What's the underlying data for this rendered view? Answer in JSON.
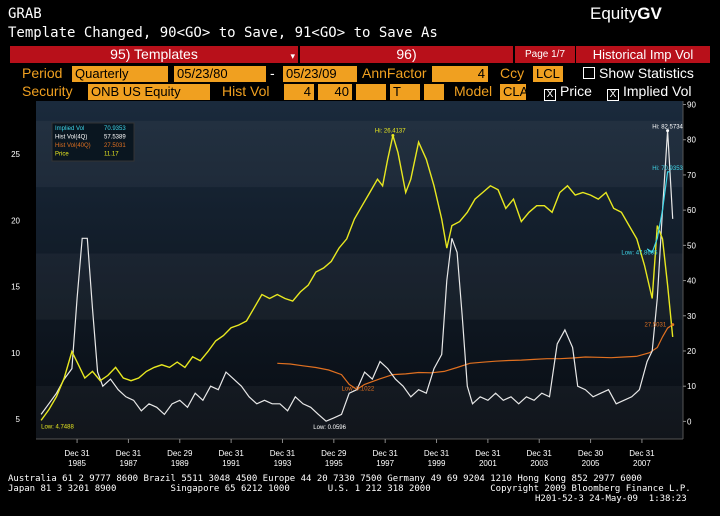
{
  "header": {
    "screen_name": "GRAB",
    "brand": "Equity",
    "brand_code": "GV",
    "message": "Template Changed, 90<GO> to Save, 91<GO> to Save As"
  },
  "bar": {
    "templates_label": "95) Templates",
    "templates_arrow": "▾",
    "slot96": "96)",
    "page": "Page 1/7",
    "view_title": "Historical Imp Vol"
  },
  "controls": {
    "period_label": "Period",
    "period_value": "Quarterly",
    "start_date": "05/23/80",
    "dash": "-",
    "end_date": "05/23/09",
    "annfactor_label": "AnnFactor",
    "annfactor_value": "4",
    "ccy_label": "Ccy",
    "ccy_value": "LCL",
    "show_stats_label": "Show Statistics",
    "security_label": "Security",
    "security_value": "ONB US Equity",
    "histvol_label": "Hist Vol",
    "histvol_1": "4",
    "histvol_2": "40",
    "histvol_3": "",
    "histvol_4": "T",
    "model_label": "Model",
    "model_value": "CLA",
    "price_label": "Price",
    "impvol_label": "Implied Vol",
    "check_mark": "X"
  },
  "legend": [
    {
      "label": "Implied Vol",
      "value": "70.9353",
      "color": "#3fd6e8"
    },
    {
      "label": "Hist Vol(4Q)",
      "value": "57.5389",
      "color": "#ffffff"
    },
    {
      "label": "Hist Vol(40Q)",
      "value": "27.5031",
      "color": "#e07020"
    },
    {
      "label": "Price",
      "value": "11.17",
      "color": "#e8e820"
    }
  ],
  "annotations": {
    "hi_price": "Hi: 26.4137",
    "hi_hist": "Hi: 82.5734",
    "hi_imp": "Hi: 70.9353",
    "low_price": "Low: 4.7488",
    "low_hist": "Low: 0.0596",
    "low_hist40": "Low: 9.1022",
    "low_imp": "Low: 47.8605",
    "last_hist40": "27.5031"
  },
  "chart_data": {
    "type": "line",
    "title": "",
    "x_tick_labels": [
      [
        "Dec 31",
        "1985"
      ],
      [
        "Dec 31",
        "1987"
      ],
      [
        "Dec 29",
        "1989"
      ],
      [
        "Dec 31",
        "1991"
      ],
      [
        "Dec 31",
        "1993"
      ],
      [
        "Dec 29",
        "1995"
      ],
      [
        "Dec 31",
        "1997"
      ],
      [
        "Dec 31",
        "1999"
      ],
      [
        "Dec 31",
        "2001"
      ],
      [
        "Dec 31",
        "2003"
      ],
      [
        "Dec 30",
        "2005"
      ],
      [
        "Dec 31",
        "2007"
      ]
    ],
    "x_tick_years": [
      1986,
      1988,
      1990,
      1992,
      1994,
      1996,
      1998,
      2000,
      2002,
      2004,
      2006,
      2008
    ],
    "xlim": [
      1984.4,
      2009.6
    ],
    "left_axis": {
      "ticks": [
        5,
        10,
        15,
        20,
        25
      ],
      "ylim": [
        3.5,
        29
      ]
    },
    "right_axis": {
      "ticks": [
        0,
        10,
        20,
        30,
        40,
        50,
        60,
        70,
        80,
        90
      ],
      "ylim": [
        -5,
        91
      ]
    },
    "series": [
      {
        "name": "Price",
        "axis": "left",
        "color": "#e8e820",
        "points": [
          [
            1984.6,
            4.9
          ],
          [
            1984.9,
            5.7
          ],
          [
            1985.2,
            6.7
          ],
          [
            1985.5,
            8.1
          ],
          [
            1985.8,
            10.1
          ],
          [
            1986.0,
            9.3
          ],
          [
            1986.3,
            8.1
          ],
          [
            1986.6,
            8.6
          ],
          [
            1986.9,
            7.9
          ],
          [
            1987.2,
            8.3
          ],
          [
            1987.5,
            8.9
          ],
          [
            1987.8,
            8.1
          ],
          [
            1988.1,
            7.9
          ],
          [
            1988.4,
            8.1
          ],
          [
            1988.7,
            8.6
          ],
          [
            1989.0,
            8.9
          ],
          [
            1989.3,
            9.1
          ],
          [
            1989.6,
            8.9
          ],
          [
            1989.9,
            9.3
          ],
          [
            1990.2,
            8.9
          ],
          [
            1990.5,
            9.7
          ],
          [
            1990.8,
            9.4
          ],
          [
            1991.1,
            10.1
          ],
          [
            1991.4,
            10.9
          ],
          [
            1991.7,
            11.3
          ],
          [
            1992.0,
            11.9
          ],
          [
            1992.3,
            12.1
          ],
          [
            1992.6,
            12.4
          ],
          [
            1992.9,
            13.4
          ],
          [
            1993.2,
            14.4
          ],
          [
            1993.5,
            14.1
          ],
          [
            1993.8,
            14.4
          ],
          [
            1994.1,
            14.1
          ],
          [
            1994.4,
            13.9
          ],
          [
            1994.7,
            14.6
          ],
          [
            1995.0,
            15.1
          ],
          [
            1995.3,
            16.1
          ],
          [
            1995.6,
            16.4
          ],
          [
            1995.9,
            16.9
          ],
          [
            1996.2,
            17.9
          ],
          [
            1996.5,
            18.6
          ],
          [
            1996.8,
            20.1
          ],
          [
            1997.1,
            21.1
          ],
          [
            1997.4,
            22.1
          ],
          [
            1997.7,
            23.1
          ],
          [
            1997.9,
            22.6
          ],
          [
            1998.1,
            24.6
          ],
          [
            1998.3,
            26.4
          ],
          [
            1998.5,
            25.1
          ],
          [
            1998.8,
            22.1
          ],
          [
            1999.0,
            23.1
          ],
          [
            1999.3,
            25.9
          ],
          [
            1999.6,
            24.6
          ],
          [
            1999.9,
            22.6
          ],
          [
            2000.2,
            20.1
          ],
          [
            2000.4,
            17.9
          ],
          [
            2000.6,
            19.6
          ],
          [
            2000.9,
            19.9
          ],
          [
            2001.2,
            20.6
          ],
          [
            2001.5,
            21.6
          ],
          [
            2001.8,
            22.1
          ],
          [
            2002.1,
            22.6
          ],
          [
            2002.4,
            22.3
          ],
          [
            2002.7,
            20.9
          ],
          [
            2003.0,
            21.6
          ],
          [
            2003.3,
            19.9
          ],
          [
            2003.6,
            20.6
          ],
          [
            2003.9,
            21.1
          ],
          [
            2004.2,
            21.1
          ],
          [
            2004.5,
            20.6
          ],
          [
            2004.8,
            22.1
          ],
          [
            2005.1,
            22.6
          ],
          [
            2005.4,
            21.9
          ],
          [
            2005.7,
            22.1
          ],
          [
            2006.0,
            21.9
          ],
          [
            2006.3,
            21.6
          ],
          [
            2006.6,
            22.1
          ],
          [
            2006.9,
            20.9
          ],
          [
            2007.2,
            20.6
          ],
          [
            2007.5,
            19.6
          ],
          [
            2007.8,
            18.6
          ],
          [
            2008.1,
            16.6
          ],
          [
            2008.4,
            14.1
          ],
          [
            2008.6,
            19.6
          ],
          [
            2008.8,
            18.6
          ],
          [
            2009.0,
            15.1
          ],
          [
            2009.2,
            11.2
          ]
        ]
      },
      {
        "name": "Hist Vol(4Q)",
        "axis": "right",
        "color": "#e8e8e8",
        "points": [
          [
            1984.6,
            2
          ],
          [
            1984.9,
            5
          ],
          [
            1985.2,
            8
          ],
          [
            1985.5,
            12
          ],
          [
            1985.8,
            15
          ],
          [
            1986.0,
            35
          ],
          [
            1986.2,
            52
          ],
          [
            1986.4,
            52
          ],
          [
            1986.6,
            32
          ],
          [
            1986.8,
            14
          ],
          [
            1987.0,
            10
          ],
          [
            1987.3,
            12
          ],
          [
            1987.6,
            9
          ],
          [
            1987.9,
            7
          ],
          [
            1988.2,
            6
          ],
          [
            1988.5,
            3
          ],
          [
            1988.8,
            5
          ],
          [
            1989.1,
            4
          ],
          [
            1989.4,
            2
          ],
          [
            1989.7,
            5
          ],
          [
            1990.0,
            6
          ],
          [
            1990.3,
            4
          ],
          [
            1990.6,
            8
          ],
          [
            1990.9,
            6
          ],
          [
            1991.2,
            10
          ],
          [
            1991.5,
            9
          ],
          [
            1991.8,
            14
          ],
          [
            1992.1,
            12
          ],
          [
            1992.4,
            10
          ],
          [
            1992.7,
            7
          ],
          [
            1993.0,
            5
          ],
          [
            1993.3,
            6
          ],
          [
            1993.6,
            5
          ],
          [
            1993.9,
            5
          ],
          [
            1994.2,
            3
          ],
          [
            1994.5,
            7
          ],
          [
            1994.8,
            5
          ],
          [
            1995.1,
            4
          ],
          [
            1995.4,
            2
          ],
          [
            1995.7,
            0.06
          ],
          [
            1996.0,
            1
          ],
          [
            1996.3,
            2
          ],
          [
            1996.6,
            8
          ],
          [
            1996.9,
            9
          ],
          [
            1997.2,
            14
          ],
          [
            1997.5,
            12
          ],
          [
            1997.8,
            17
          ],
          [
            1998.1,
            15
          ],
          [
            1998.4,
            12
          ],
          [
            1998.7,
            10
          ],
          [
            1999.0,
            7
          ],
          [
            1999.3,
            9
          ],
          [
            1999.6,
            8
          ],
          [
            1999.9,
            15
          ],
          [
            2000.2,
            19
          ],
          [
            2000.4,
            40
          ],
          [
            2000.6,
            52
          ],
          [
            2000.8,
            48
          ],
          [
            2001.0,
            30
          ],
          [
            2001.2,
            10
          ],
          [
            2001.4,
            5
          ],
          [
            2001.7,
            7
          ],
          [
            2002.0,
            6
          ],
          [
            2002.3,
            8
          ],
          [
            2002.6,
            6
          ],
          [
            2002.9,
            7
          ],
          [
            2003.2,
            5
          ],
          [
            2003.5,
            7
          ],
          [
            2003.8,
            6
          ],
          [
            2004.1,
            8
          ],
          [
            2004.4,
            7
          ],
          [
            2004.7,
            22
          ],
          [
            2005.0,
            26
          ],
          [
            2005.3,
            21
          ],
          [
            2005.5,
            10
          ],
          [
            2005.8,
            9
          ],
          [
            2006.1,
            7
          ],
          [
            2006.4,
            8
          ],
          [
            2006.7,
            9
          ],
          [
            2007.0,
            5
          ],
          [
            2007.3,
            6
          ],
          [
            2007.6,
            7
          ],
          [
            2007.9,
            9
          ],
          [
            2008.2,
            17
          ],
          [
            2008.4,
            20
          ],
          [
            2008.6,
            35
          ],
          [
            2008.8,
            60
          ],
          [
            2009.0,
            82.6
          ],
          [
            2009.2,
            57.5
          ]
        ]
      },
      {
        "name": "Hist Vol(40Q)",
        "axis": "right",
        "color": "#e07020",
        "points": [
          [
            1993.8,
            16.5
          ],
          [
            1994.3,
            16.3
          ],
          [
            1994.8,
            15.8
          ],
          [
            1995.3,
            15.3
          ],
          [
            1995.8,
            14.6
          ],
          [
            1996.3,
            13.3
          ],
          [
            1996.6,
            10.5
          ],
          [
            1996.9,
            9.1
          ],
          [
            1997.2,
            10.5
          ],
          [
            1997.8,
            12.1
          ],
          [
            1998.3,
            13.3
          ],
          [
            1998.8,
            13.5
          ],
          [
            1999.3,
            13.9
          ],
          [
            1999.8,
            13.8
          ],
          [
            2000.3,
            14.2
          ],
          [
            2000.8,
            15.3
          ],
          [
            2001.3,
            16.5
          ],
          [
            2001.8,
            16.8
          ],
          [
            2002.3,
            17.1
          ],
          [
            2002.8,
            17.3
          ],
          [
            2003.3,
            17.4
          ],
          [
            2003.8,
            17.6
          ],
          [
            2004.3,
            17.8
          ],
          [
            2004.8,
            17.8
          ],
          [
            2005.3,
            18.0
          ],
          [
            2005.8,
            18.3
          ],
          [
            2006.3,
            18.2
          ],
          [
            2006.8,
            18.1
          ],
          [
            2007.3,
            18.3
          ],
          [
            2007.8,
            18.5
          ],
          [
            2008.3,
            19.5
          ],
          [
            2008.6,
            21.0
          ],
          [
            2008.8,
            24.0
          ],
          [
            2009.0,
            26.5
          ],
          [
            2009.2,
            27.5
          ]
        ]
      },
      {
        "name": "Implied Vol",
        "axis": "right",
        "color": "#3fd6e8",
        "points": [
          [
            2008.2,
            49
          ],
          [
            2008.4,
            48
          ],
          [
            2008.6,
            52
          ],
          [
            2008.8,
            60
          ],
          [
            2009.0,
            70.9
          ],
          [
            2009.1,
            70.9
          ]
        ]
      }
    ]
  },
  "footer": {
    "line1": "Australia 61 2 9777 8600 Brazil 5511 3048 4500 Europe 44 20 7330 7500 Germany 49 69 9204 1210 Hong Kong 852 2977 6000",
    "line2": "Japan 81 3 3201 8900          Singapore 65 6212 1000       U.S. 1 212 318 2000           Copyright 2009 Bloomberg Finance L.P.",
    "line3": "H201-52-3 24-May-09  1:38:23"
  }
}
